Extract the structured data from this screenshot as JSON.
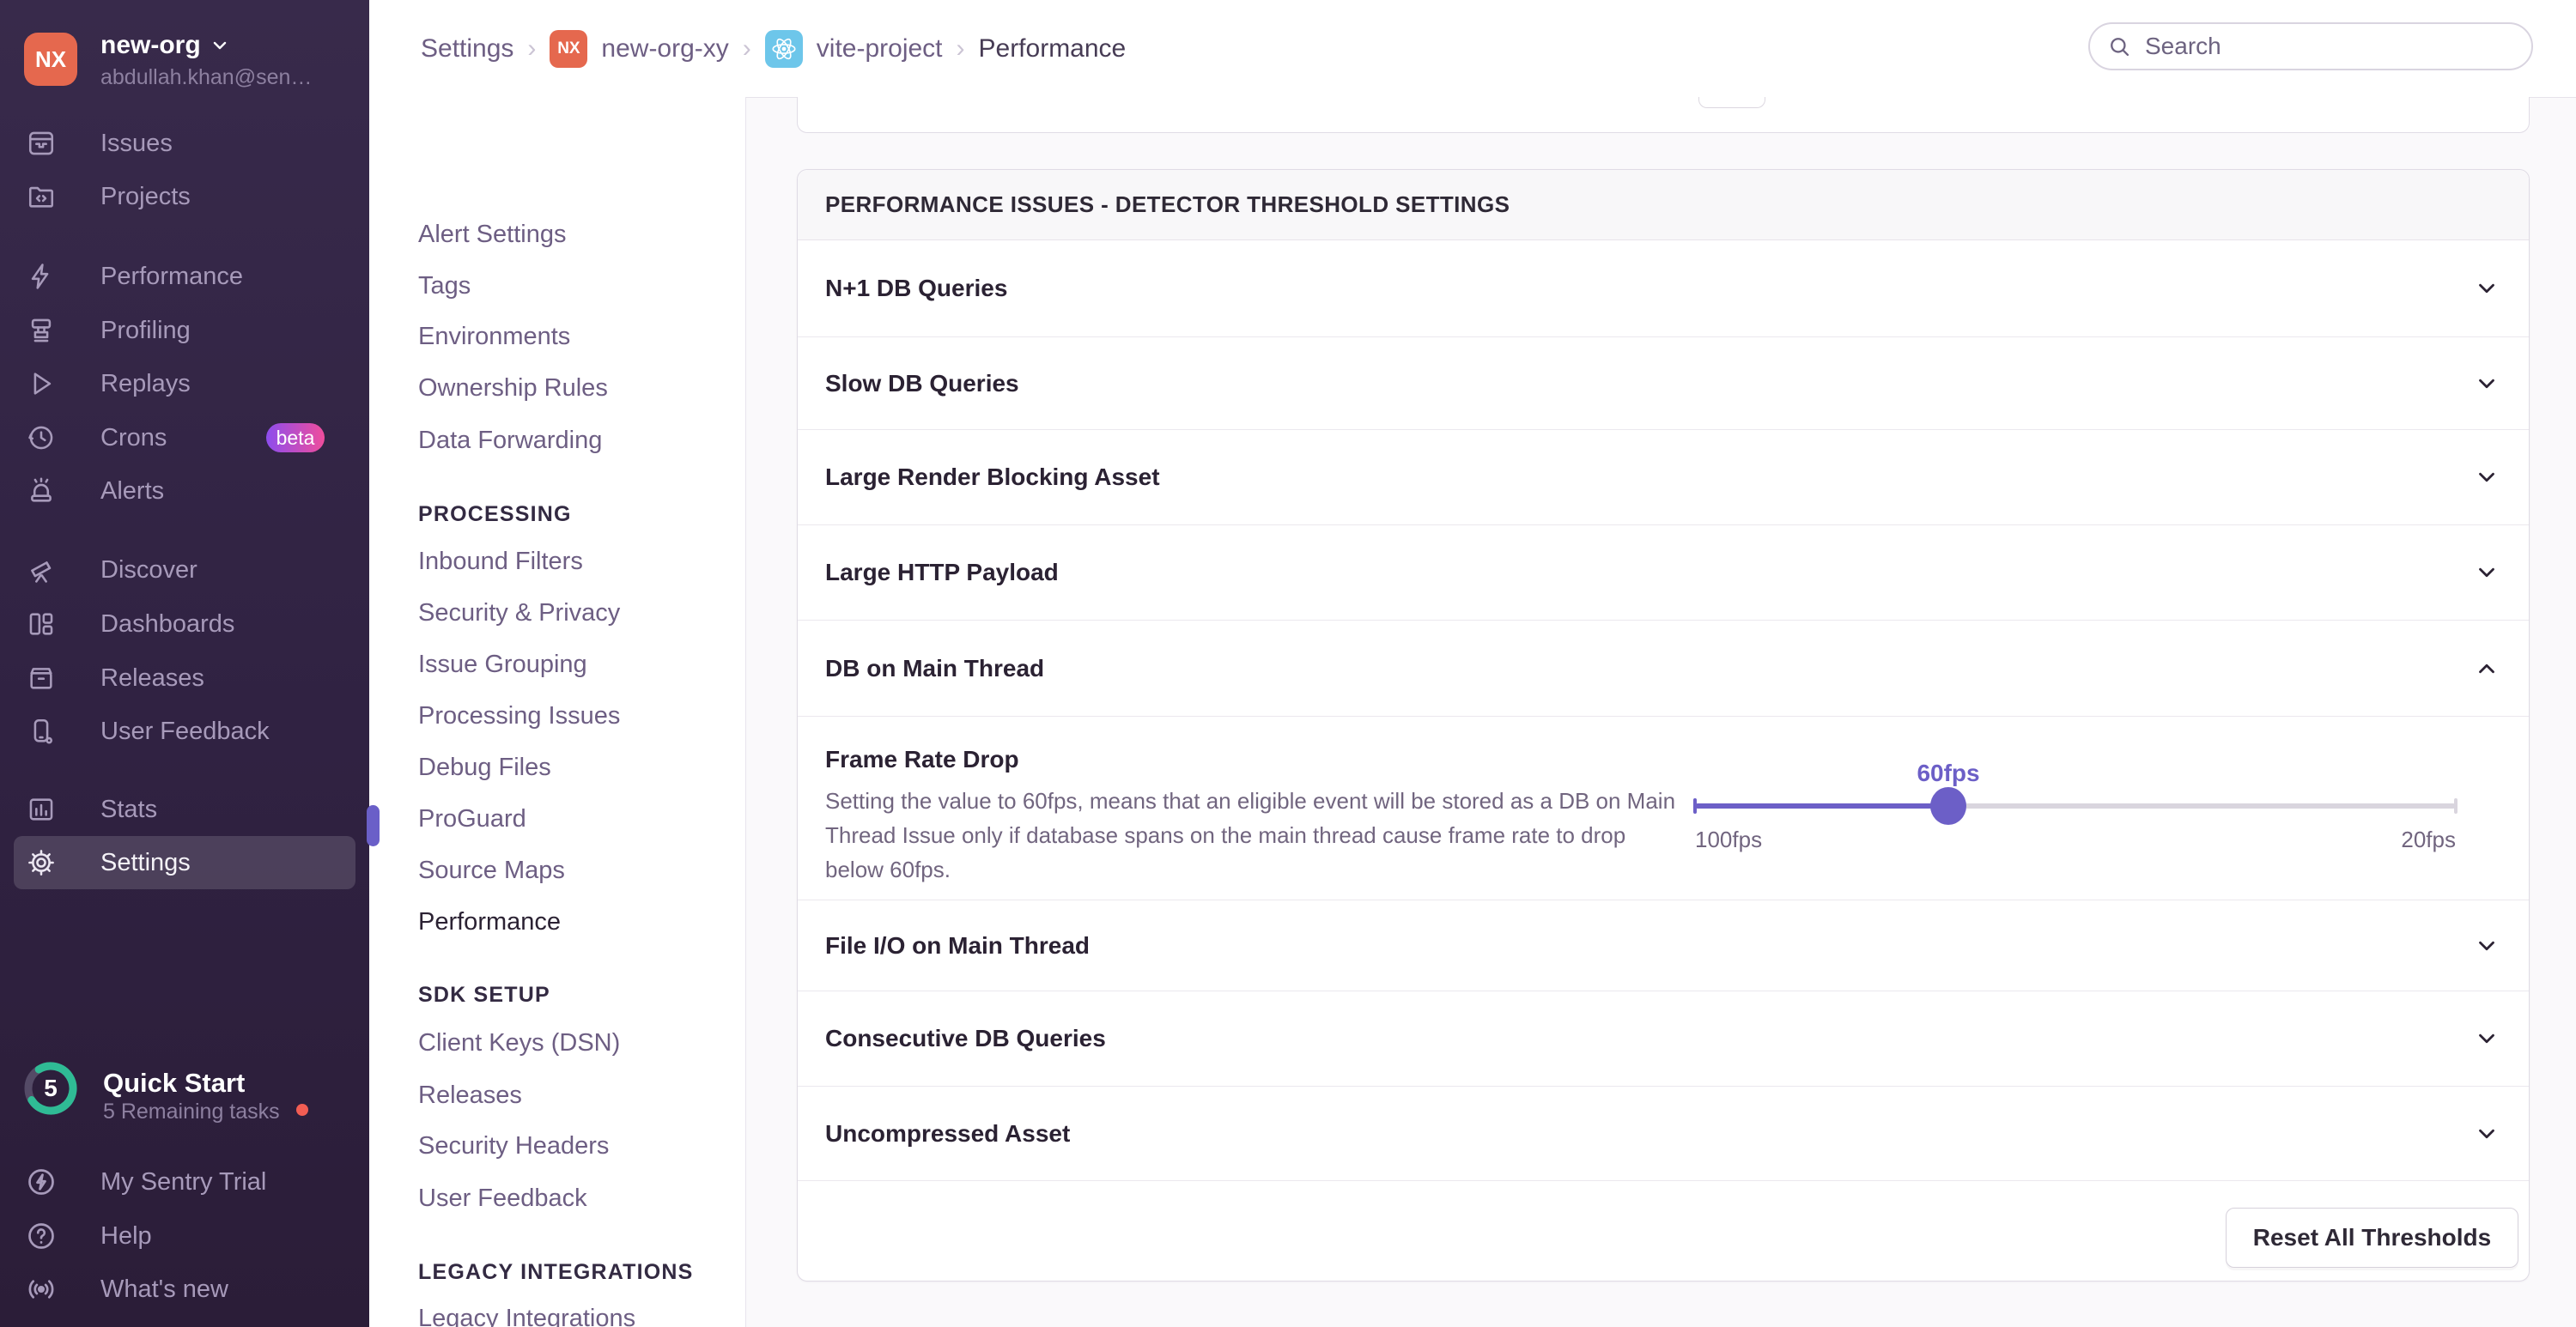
{
  "sidebar": {
    "avatar_initials": "NX",
    "org_name": "new-org",
    "user_email": "abdullah.khan@sen…",
    "items": [
      {
        "label": "Issues"
      },
      {
        "label": "Projects"
      },
      {
        "label": "Performance"
      },
      {
        "label": "Profiling"
      },
      {
        "label": "Replays"
      },
      {
        "label": "Crons",
        "badge": "beta"
      },
      {
        "label": "Alerts"
      },
      {
        "label": "Discover"
      },
      {
        "label": "Dashboards"
      },
      {
        "label": "Releases"
      },
      {
        "label": "User Feedback"
      },
      {
        "label": "Stats"
      },
      {
        "label": "Settings"
      }
    ],
    "quick_start": {
      "count": "5",
      "title": "Quick Start",
      "subtitle": "5 Remaining tasks",
      "progress_percent": 75
    },
    "footer_items": [
      {
        "label": "My Sentry Trial"
      },
      {
        "label": "Help"
      },
      {
        "label": "What's new"
      }
    ]
  },
  "header": {
    "breadcrumb": {
      "settings": "Settings",
      "org": "new-org-xy",
      "org_initials": "NX",
      "project": "vite-project",
      "page": "Performance"
    },
    "search_placeholder": "Search"
  },
  "settings_nav": {
    "groups": [
      {
        "header": "",
        "items": [
          {
            "label": "Alert Settings"
          },
          {
            "label": "Tags"
          },
          {
            "label": "Environments"
          },
          {
            "label": "Ownership Rules"
          },
          {
            "label": "Data Forwarding"
          }
        ]
      },
      {
        "header": "PROCESSING",
        "items": [
          {
            "label": "Inbound Filters"
          },
          {
            "label": "Security & Privacy"
          },
          {
            "label": "Issue Grouping"
          },
          {
            "label": "Processing Issues"
          },
          {
            "label": "Debug Files"
          },
          {
            "label": "ProGuard"
          },
          {
            "label": "Source Maps"
          },
          {
            "label": "Performance",
            "active": true
          }
        ]
      },
      {
        "header": "SDK SETUP",
        "items": [
          {
            "label": "Client Keys (DSN)"
          },
          {
            "label": "Releases"
          },
          {
            "label": "Security Headers"
          },
          {
            "label": "User Feedback"
          }
        ]
      },
      {
        "header": "LEGACY INTEGRATIONS",
        "items": [
          {
            "label": "Legacy Integrations"
          }
        ]
      }
    ]
  },
  "main": {
    "panel_title": "PERFORMANCE ISSUES - DETECTOR THRESHOLD SETTINGS",
    "rows": [
      {
        "label": "N+1 DB Queries"
      },
      {
        "label": "Slow DB Queries"
      },
      {
        "label": "Large Render Blocking Asset"
      },
      {
        "label": "Large HTTP Payload"
      },
      {
        "label": "DB on Main Thread",
        "expanded": true
      },
      {
        "label": "File I/O on Main Thread"
      },
      {
        "label": "Consecutive DB Queries"
      },
      {
        "label": "Uncompressed Asset"
      }
    ],
    "expanded": {
      "title": "Frame Rate Drop",
      "description": "Setting the value to 60fps, means that an eligible event will be stored as a DB on Main Thread Issue only if database spans on the main thread cause frame rate to drop below 60fps.",
      "slider": {
        "value_label": "60fps",
        "min_label": "100fps",
        "max_label": "20fps",
        "percent": 33.3
      }
    },
    "reset_button": "Reset All Thresholds"
  },
  "colors": {
    "accent_purple": "#6c5fc7",
    "brand_orange": "#e5684e",
    "react_cyan": "#6dc6ea",
    "progress_green": "#2fbb95",
    "alert_red": "#f25d53"
  }
}
